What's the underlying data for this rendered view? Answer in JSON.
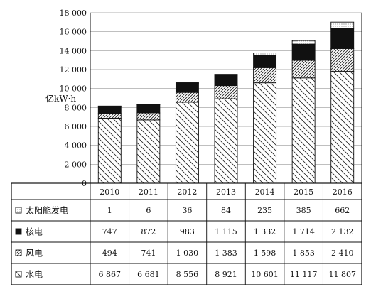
{
  "chart_data": {
    "type": "bar",
    "stacked": true,
    "ylabel": "亿kW·h",
    "ylim": [
      0,
      18000
    ],
    "y_ticks": [
      0,
      2000,
      4000,
      6000,
      8000,
      10000,
      12000,
      14000,
      16000,
      18000
    ],
    "y_tick_labels": [
      "0",
      "2 000",
      "4 000",
      "6 000",
      "8 000",
      "10 000",
      "12 000",
      "14 000",
      "16 000",
      "18 000"
    ],
    "categories": [
      "2010",
      "2011",
      "2012",
      "2013",
      "2014",
      "2015",
      "2016"
    ],
    "grid": true,
    "series": [
      {
        "name": "水电",
        "pattern": "diagonal-hatch",
        "values": [
          6867,
          6681,
          8556,
          8921,
          10601,
          11117,
          11807
        ],
        "labels": [
          "6 867",
          "6 681",
          "8 556",
          "8 921",
          "10 601",
          "11 117",
          "11 807"
        ]
      },
      {
        "name": "风电",
        "pattern": "dense-hatch",
        "values": [
          494,
          741,
          1030,
          1383,
          1598,
          1853,
          2410
        ],
        "labels": [
          "494",
          "741",
          "1 030",
          "1 383",
          "1 598",
          "1 853",
          "2 410"
        ]
      },
      {
        "name": "核电",
        "pattern": "solid-black",
        "values": [
          747,
          872,
          983,
          1115,
          1332,
          1714,
          2132
        ],
        "labels": [
          "747",
          "872",
          "983",
          "1 115",
          "1 332",
          "1 714",
          "2 132"
        ]
      },
      {
        "name": "太阳能发电",
        "pattern": "dotted",
        "values": [
          1,
          6,
          36,
          84,
          235,
          385,
          662
        ],
        "labels": [
          "1",
          "6",
          "36",
          "84",
          "235",
          "385",
          "662"
        ]
      }
    ],
    "table_row_order": [
      3,
      2,
      1,
      0
    ]
  }
}
